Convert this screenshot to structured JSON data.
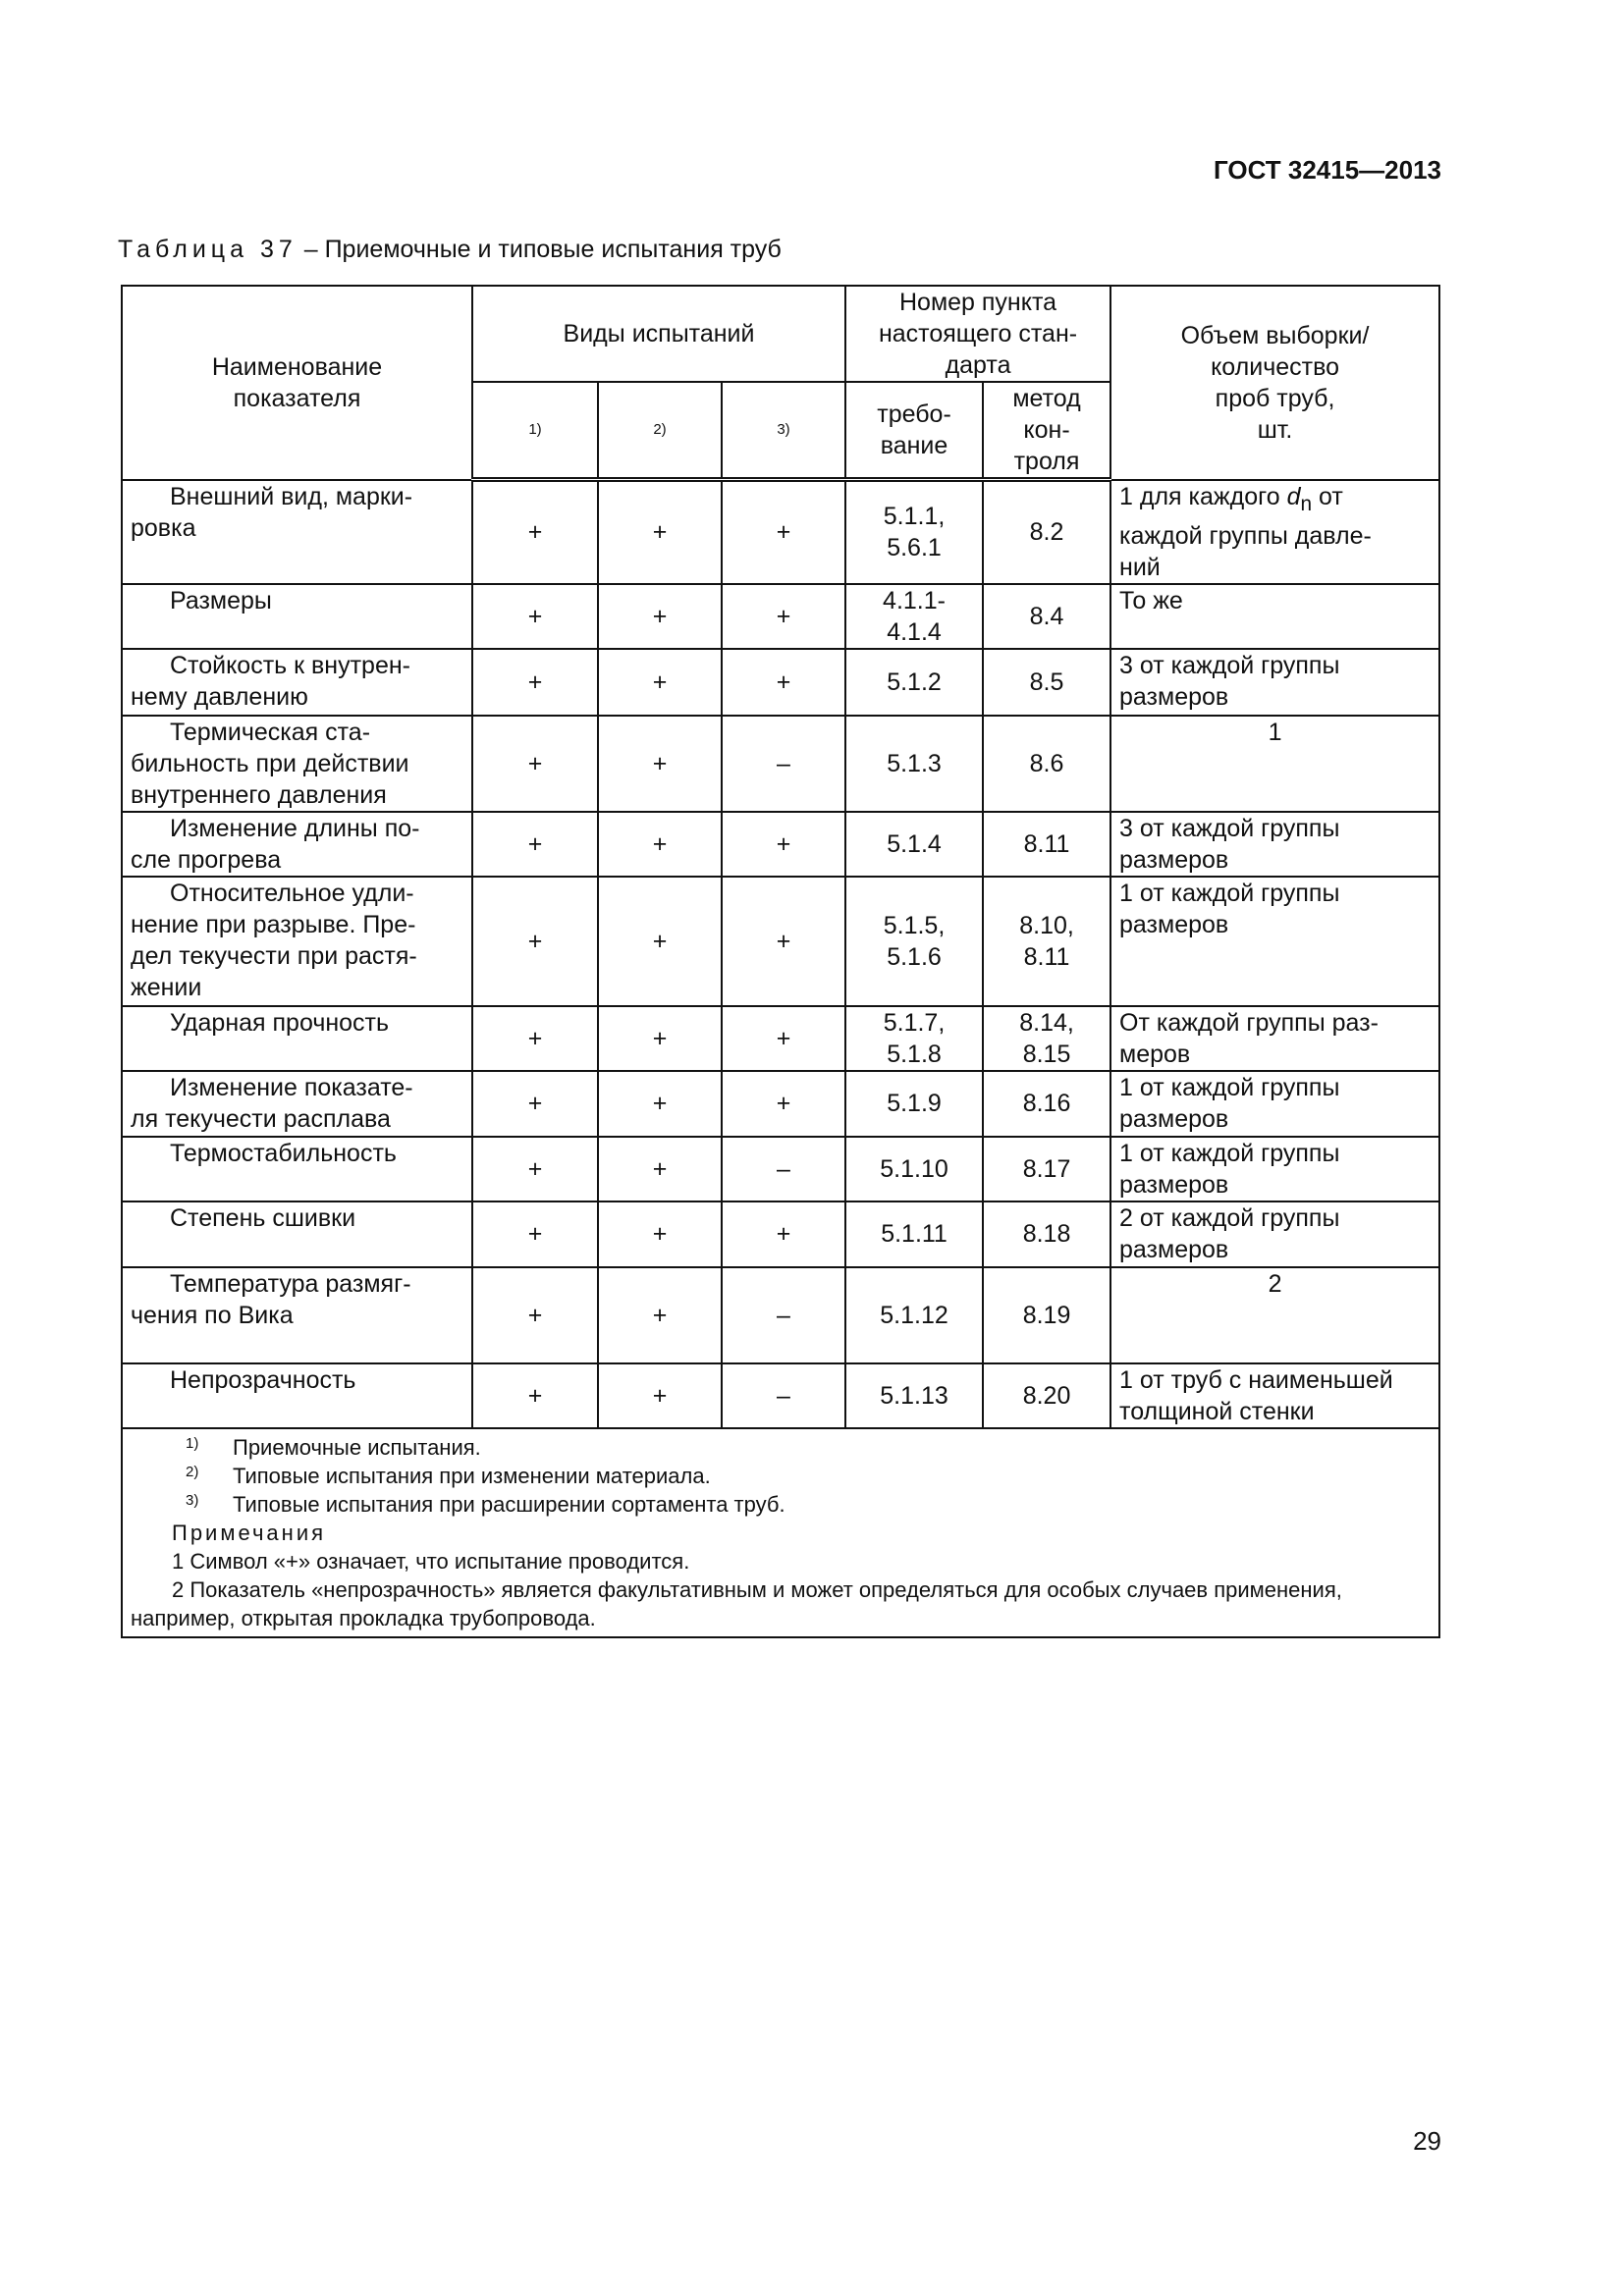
{
  "header": {
    "doc_id": "ГОСТ 32415—2013"
  },
  "caption": {
    "label": "Таблица 37",
    "text": " – Приемочные и типовые испытания труб"
  },
  "columns": {
    "name": "Наименование\nпоказателя",
    "test_types": "Виды испытаний",
    "t1": "1)",
    "t2": "2)",
    "t3": "3)",
    "clause": "Номер пункта\nнастоящего стан-\nдарта",
    "requirement": "требо-\nвание",
    "method": "метод\nкон-\nтроля",
    "sample": "Объем выборки/\nколичество\nпроб труб,\nшт."
  },
  "rows": [
    {
      "name": "Внешний вид, марки-\nровка",
      "t1": "+",
      "t2": "+",
      "t3": "+",
      "req": "5.1.1,\n5.6.1",
      "method": "8.2",
      "sample_pre": "1 для каждого ",
      "sample_var": "d",
      "sample_sub": "n",
      "sample_post": " от\nкаждой группы давле-\nний"
    },
    {
      "name": "Размеры",
      "t1": "+",
      "t2": "+",
      "t3": "+",
      "req": "4.1.1-\n4.1.4",
      "method": "8.4",
      "sample": "То же"
    },
    {
      "name": "Стойкость к внутрен-\nнему давлению",
      "t1": "+",
      "t2": "+",
      "t3": "+",
      "req": "5.1.2",
      "method": "8.5",
      "sample": "3 от каждой группы\nразмеров"
    },
    {
      "name": "Термическая ста-\nбильность при действии\nвнутреннего давления",
      "t1": "+",
      "t2": "+",
      "t3": "–",
      "req": "5.1.3",
      "method": "8.6",
      "sample": "1",
      "center": true
    },
    {
      "name": "Изменение длины по-\nсле прогрева",
      "t1": "+",
      "t2": "+",
      "t3": "+",
      "req": "5.1.4",
      "method": "8.11",
      "sample": "3 от каждой группы\nразмеров"
    },
    {
      "name": "Относительное удли-\nнение при разрыве. Пре-\nдел текучести при растя-\nжении",
      "t1": "+",
      "t2": "+",
      "t3": "+",
      "req": "5.1.5,\n5.1.6",
      "method": "8.10,\n8.11",
      "sample": "1 от каждой группы\nразмеров"
    },
    {
      "name": "Ударная прочность",
      "t1": "+",
      "t2": "+",
      "t3": "+",
      "req": "5.1.7,\n5.1.8",
      "method": "8.14,\n8.15",
      "sample": "От каждой группы раз-\nмеров"
    },
    {
      "name": "Изменение показате-\nля текучести расплава",
      "t1": "+",
      "t2": "+",
      "t3": "+",
      "req": "5.1.9",
      "method": "8.16",
      "sample": "1 от каждой группы\nразмеров"
    },
    {
      "name": "Термостабильность",
      "t1": "+",
      "t2": "+",
      "t3": "–",
      "req": "5.1.10",
      "method": "8.17",
      "sample": "1 от каждой группы\nразмеров"
    },
    {
      "name": "Степень сшивки",
      "t1": "+",
      "t2": "+",
      "t3": "+",
      "req": "5.1.11",
      "method": "8.18",
      "sample": "2 от каждой группы\nразмеров"
    },
    {
      "name": "Температура размяг-\nчения по Вика",
      "t1": "+",
      "t2": "+",
      "t3": "–",
      "req": "5.1.12",
      "method": "8.19",
      "sample": "2",
      "center": true
    },
    {
      "name": "Непрозрачность",
      "t1": "+",
      "t2": "+",
      "t3": "–",
      "req": "5.1.13",
      "method": "8.20",
      "sample": "1 от труб с наименьшей\nтолщиной стенки"
    }
  ],
  "footnotes": [
    {
      "mark": "1)",
      "text": "Приемочные испытания."
    },
    {
      "mark": "2)",
      "text": "Типовые испытания при изменении материала."
    },
    {
      "mark": "3)",
      "text": "Типовые испытания при расширении сортамента труб."
    }
  ],
  "notes": {
    "title": "Примечания",
    "items": [
      "1 Символ «+» означает, что испытание проводится.",
      "2 Показатель «непрозрачность» является факультативным и может определяться для особых случаев применения, например, открытая прокладка трубопровода."
    ]
  },
  "page_number": "29"
}
